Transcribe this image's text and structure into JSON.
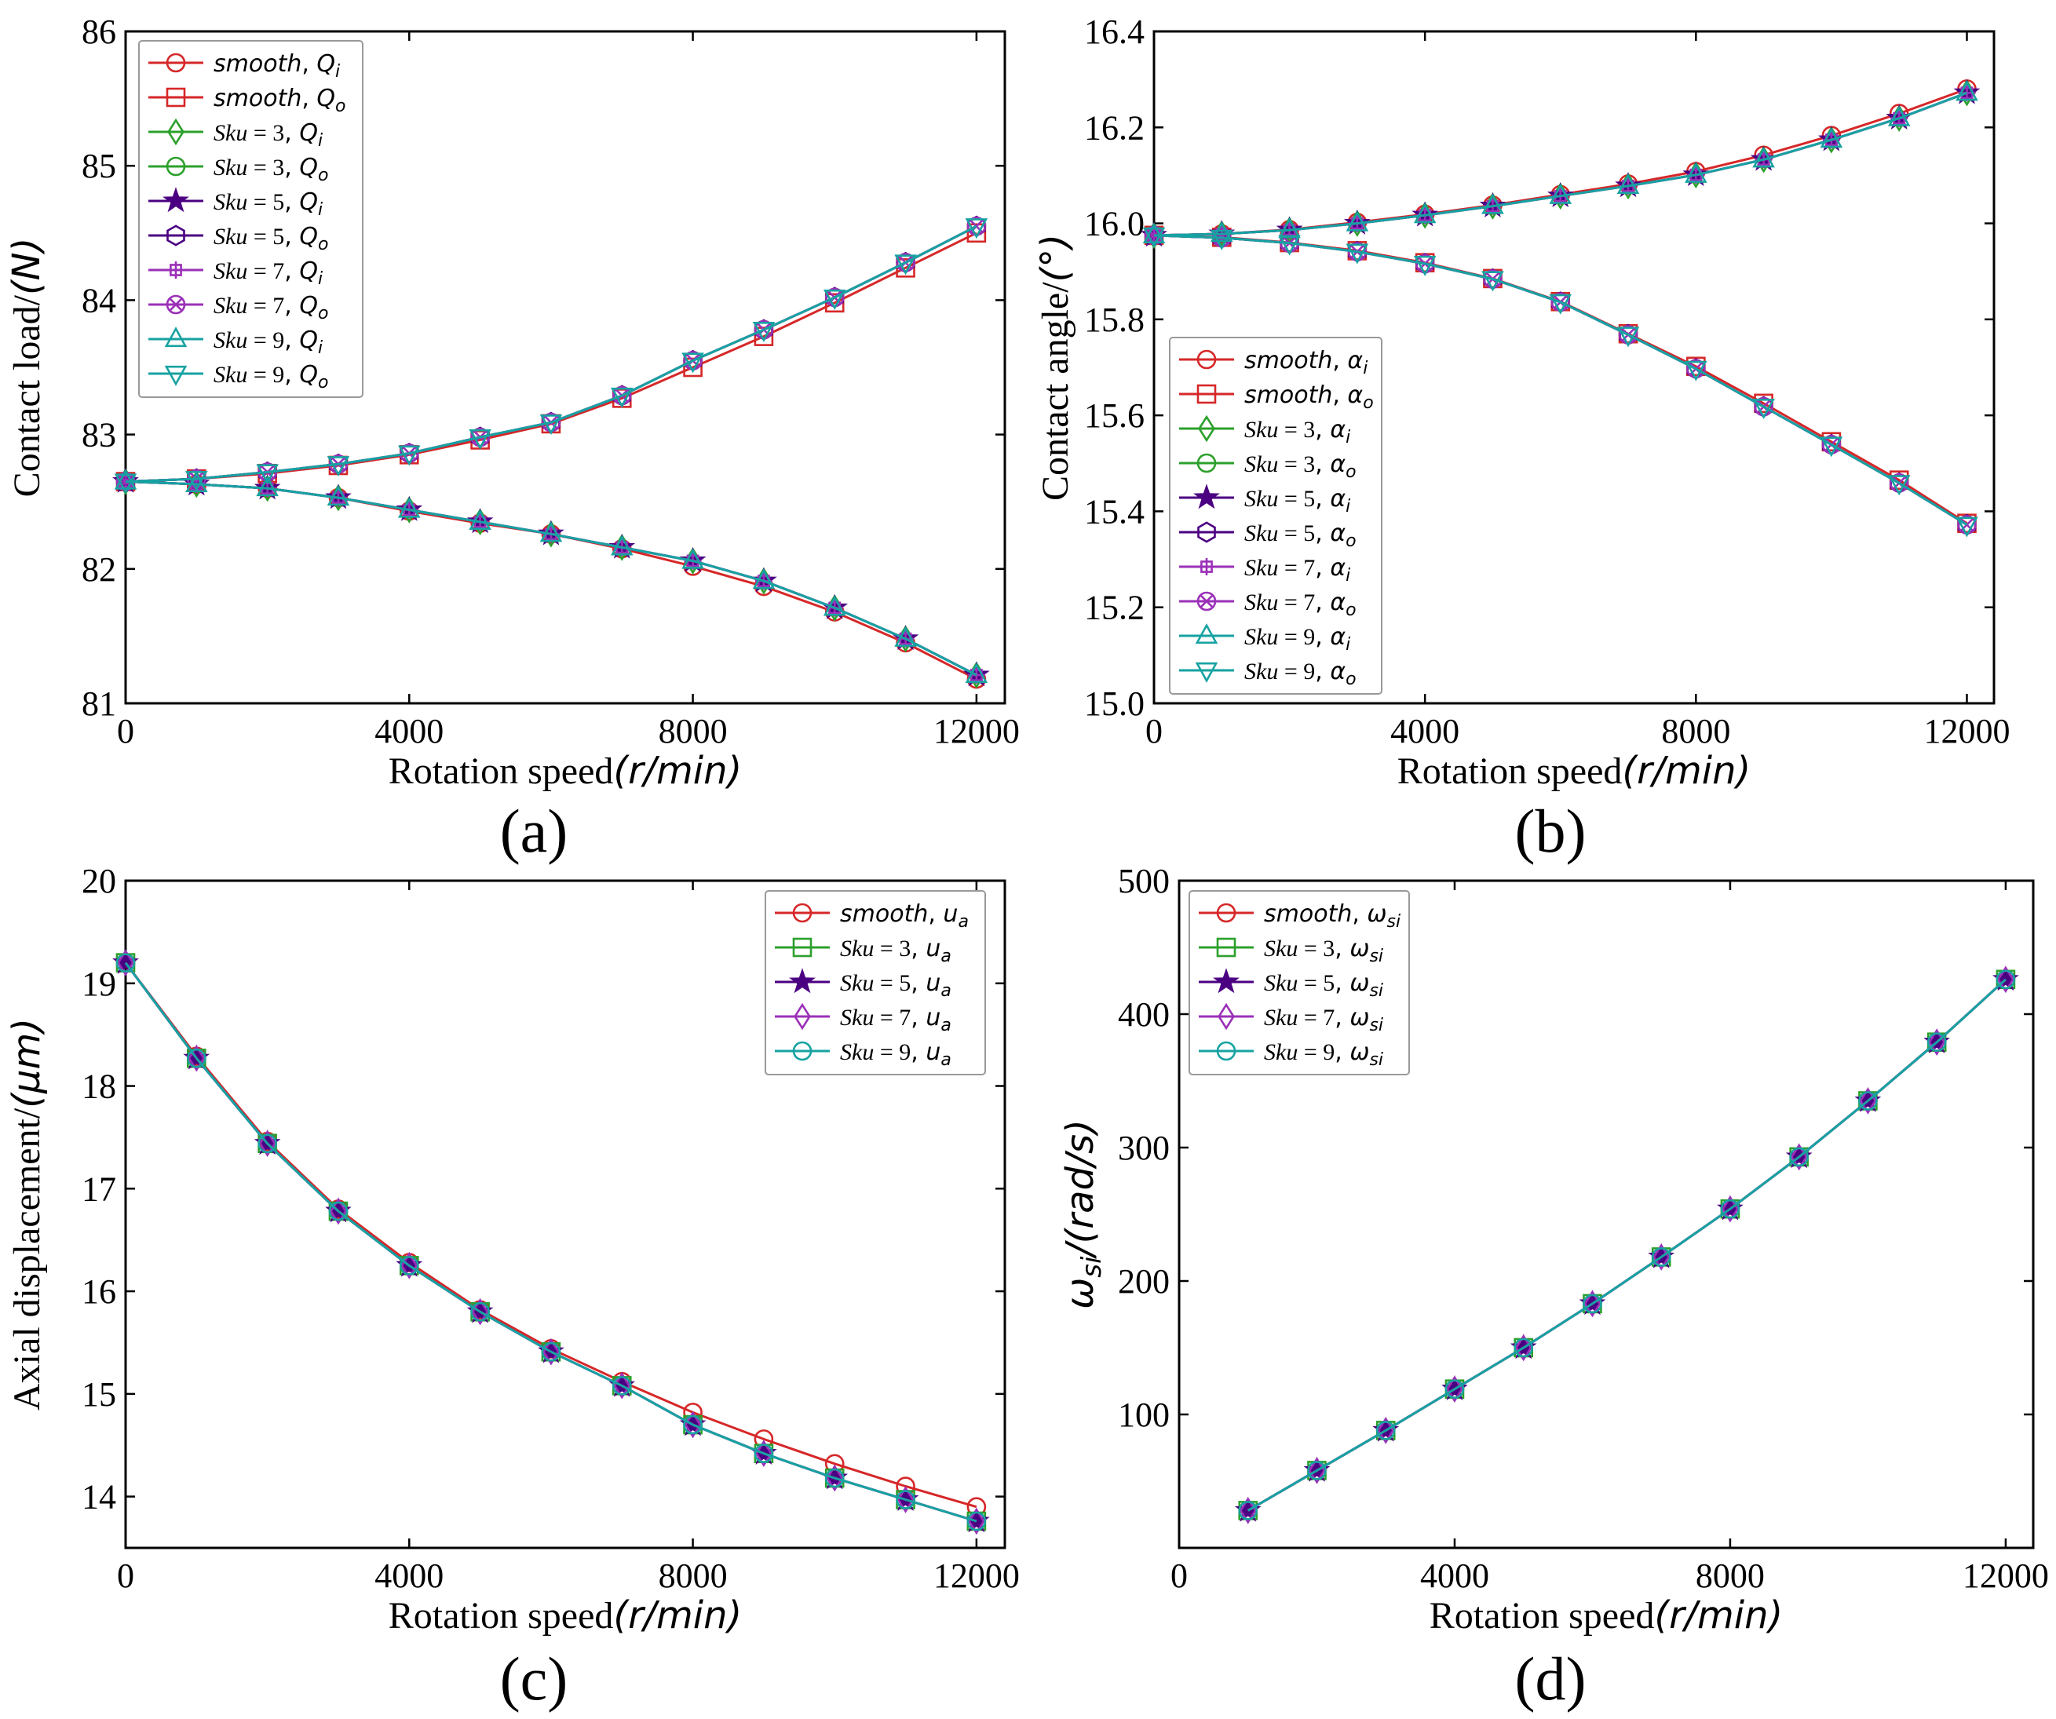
{
  "colors": {
    "smooth": "#d62728",
    "sku3": "#2ca02c",
    "sku5": "#4b0082",
    "sku7": "#9b30b8",
    "sku9": "#17a2a2"
  },
  "chart_data": [
    {
      "id": "a",
      "type": "line",
      "panel_label": "(a)",
      "title": "",
      "xlabel_main": "Rotation speed",
      "xlabel_unit": "(r/min)",
      "ylabel_main": "Contact load/",
      "ylabel_unit": "(N)",
      "xlim": [
        0,
        12400
      ],
      "ylim": [
        81,
        86
      ],
      "xticks": [
        0,
        4000,
        8000,
        12000
      ],
      "yticks": [
        81,
        82,
        83,
        84,
        85,
        86
      ],
      "legend": "upper-left",
      "x": [
        0,
        1000,
        2000,
        3000,
        4000,
        5000,
        6000,
        7000,
        8000,
        9000,
        10000,
        11000,
        12000
      ],
      "series": [
        {
          "name": "smooth, Q_i",
          "base": "smooth",
          "sub": "i",
          "color_key": "smooth",
          "marker": "circle",
          "values": [
            82.65,
            82.63,
            82.6,
            82.53,
            82.43,
            82.34,
            82.26,
            82.15,
            82.02,
            81.87,
            81.68,
            81.45,
            81.18
          ]
        },
        {
          "name": "smooth, Q_o",
          "base": "smooth",
          "sub": "o",
          "color_key": "smooth",
          "marker": "square",
          "values": [
            82.65,
            82.67,
            82.71,
            82.77,
            82.85,
            82.96,
            83.08,
            83.27,
            83.5,
            83.73,
            83.98,
            84.24,
            84.5
          ]
        },
        {
          "name": "Sku=3, Q_i",
          "base": "Sku = 3",
          "sub": "i",
          "color_key": "sku3",
          "marker": "diamond",
          "values": [
            82.65,
            82.63,
            82.6,
            82.53,
            82.44,
            82.35,
            82.26,
            82.16,
            82.06,
            81.91,
            81.71,
            81.48,
            81.21
          ]
        },
        {
          "name": "Sku=3, Q_o",
          "base": "Sku = 3",
          "sub": "o",
          "color_key": "sku3",
          "marker": "circle",
          "values": [
            82.65,
            82.67,
            82.72,
            82.78,
            82.86,
            82.98,
            83.09,
            83.29,
            83.55,
            83.78,
            84.02,
            84.28,
            84.55
          ]
        },
        {
          "name": "Sku=5, Q_i",
          "base": "Sku = 5",
          "sub": "i",
          "color_key": "sku5",
          "marker": "star",
          "values": [
            82.65,
            82.63,
            82.6,
            82.53,
            82.44,
            82.35,
            82.26,
            82.16,
            82.06,
            81.91,
            81.71,
            81.48,
            81.21
          ]
        },
        {
          "name": "Sku=5, Q_o",
          "base": "Sku = 5",
          "sub": "o",
          "color_key": "sku5",
          "marker": "hexagon",
          "values": [
            82.65,
            82.67,
            82.72,
            82.78,
            82.86,
            82.98,
            83.09,
            83.29,
            83.55,
            83.78,
            84.02,
            84.28,
            84.55
          ]
        },
        {
          "name": "Sku=7, Q_i",
          "base": "Sku = 7",
          "sub": "i",
          "color_key": "sku7",
          "marker": "plusbox",
          "values": [
            82.65,
            82.63,
            82.6,
            82.53,
            82.44,
            82.35,
            82.26,
            82.16,
            82.06,
            81.91,
            81.71,
            81.48,
            81.21
          ]
        },
        {
          "name": "Sku=7, Q_o",
          "base": "Sku = 7",
          "sub": "o",
          "color_key": "sku7",
          "marker": "xcircle",
          "values": [
            82.65,
            82.67,
            82.72,
            82.78,
            82.86,
            82.98,
            83.09,
            83.29,
            83.55,
            83.78,
            84.02,
            84.28,
            84.55
          ]
        },
        {
          "name": "Sku=9, Q_i",
          "base": "Sku = 9",
          "sub": "i",
          "color_key": "sku9",
          "marker": "triangle-up",
          "values": [
            82.65,
            82.63,
            82.6,
            82.53,
            82.44,
            82.35,
            82.26,
            82.16,
            82.06,
            81.91,
            81.71,
            81.48,
            81.21
          ]
        },
        {
          "name": "Sku=9, Q_o",
          "base": "Sku = 9",
          "sub": "o",
          "color_key": "sku9",
          "marker": "triangle-down",
          "values": [
            82.65,
            82.67,
            82.72,
            82.78,
            82.86,
            82.98,
            83.09,
            83.29,
            83.55,
            83.78,
            84.02,
            84.28,
            84.55
          ]
        }
      ]
    },
    {
      "id": "b",
      "type": "line",
      "panel_label": "(b)",
      "title": "",
      "xlabel_main": "Rotation speed",
      "xlabel_unit": "(r/min)",
      "ylabel_main": "Contact angle/",
      "ylabel_unit": "(°)",
      "xlim": [
        0,
        12400
      ],
      "ylim": [
        15.0,
        16.4
      ],
      "xticks": [
        0,
        4000,
        8000,
        12000
      ],
      "yticks": [
        15.0,
        15.2,
        15.4,
        15.6,
        15.8,
        16.0,
        16.2,
        16.4
      ],
      "legend": "lower-left",
      "x": [
        0,
        1000,
        2000,
        3000,
        4000,
        5000,
        6000,
        7000,
        8000,
        9000,
        10000,
        11000,
        12000
      ],
      "series": [
        {
          "name": "smooth, α_i",
          "base": "smooth",
          "sub": "i",
          "greek": true,
          "color_key": "smooth",
          "marker": "circle",
          "values": [
            15.975,
            15.978,
            15.987,
            16.002,
            16.019,
            16.038,
            16.06,
            16.082,
            16.108,
            16.142,
            16.183,
            16.229,
            16.28
          ]
        },
        {
          "name": "smooth, α_o",
          "base": "smooth",
          "sub": "o",
          "greek": true,
          "color_key": "smooth",
          "marker": "square",
          "values": [
            15.975,
            15.971,
            15.96,
            15.943,
            15.918,
            15.885,
            15.837,
            15.77,
            15.702,
            15.625,
            15.545,
            15.465,
            15.375
          ]
        },
        {
          "name": "Sku=3, α_i",
          "base": "Sku = 3",
          "sub": "i",
          "greek": true,
          "color_key": "sku3",
          "marker": "diamond",
          "values": [
            15.975,
            15.978,
            15.986,
            16.0,
            16.017,
            16.036,
            16.057,
            16.078,
            16.101,
            16.133,
            16.174,
            16.219,
            16.272
          ]
        },
        {
          "name": "Sku=3, α_o",
          "base": "Sku = 3",
          "sub": "o",
          "greek": true,
          "color_key": "sku3",
          "marker": "circle",
          "values": [
            15.975,
            15.97,
            15.959,
            15.941,
            15.916,
            15.884,
            15.836,
            15.768,
            15.697,
            15.618,
            15.539,
            15.459,
            15.372
          ]
        },
        {
          "name": "Sku=5, α_i",
          "base": "Sku = 5",
          "sub": "i",
          "greek": true,
          "color_key": "sku5",
          "marker": "star",
          "values": [
            15.975,
            15.978,
            15.986,
            16.0,
            16.017,
            16.036,
            16.057,
            16.078,
            16.101,
            16.133,
            16.174,
            16.219,
            16.272
          ]
        },
        {
          "name": "Sku=5, α_o",
          "base": "Sku = 5",
          "sub": "o",
          "greek": true,
          "color_key": "sku5",
          "marker": "hexagon",
          "values": [
            15.975,
            15.97,
            15.959,
            15.941,
            15.916,
            15.884,
            15.836,
            15.768,
            15.697,
            15.618,
            15.539,
            15.459,
            15.372
          ]
        },
        {
          "name": "Sku=7, α_i",
          "base": "Sku = 7",
          "sub": "i",
          "greek": true,
          "color_key": "sku7",
          "marker": "plusbox",
          "values": [
            15.975,
            15.978,
            15.986,
            16.0,
            16.017,
            16.036,
            16.057,
            16.078,
            16.101,
            16.133,
            16.174,
            16.219,
            16.272
          ]
        },
        {
          "name": "Sku=7, α_o",
          "base": "Sku = 7",
          "sub": "o",
          "greek": true,
          "color_key": "sku7",
          "marker": "xcircle",
          "values": [
            15.975,
            15.97,
            15.959,
            15.941,
            15.916,
            15.884,
            15.836,
            15.768,
            15.697,
            15.618,
            15.539,
            15.459,
            15.372
          ]
        },
        {
          "name": "Sku=9, α_i",
          "base": "Sku = 9",
          "sub": "i",
          "greek": true,
          "color_key": "sku9",
          "marker": "triangle-up",
          "values": [
            15.975,
            15.978,
            15.986,
            16.0,
            16.017,
            16.036,
            16.057,
            16.078,
            16.101,
            16.133,
            16.174,
            16.219,
            16.272
          ]
        },
        {
          "name": "Sku=9, α_o",
          "base": "Sku = 9",
          "sub": "o",
          "greek": true,
          "color_key": "sku9",
          "marker": "triangle-down",
          "values": [
            15.975,
            15.97,
            15.959,
            15.941,
            15.916,
            15.884,
            15.836,
            15.768,
            15.697,
            15.618,
            15.539,
            15.459,
            15.372
          ]
        }
      ]
    },
    {
      "id": "c",
      "type": "line",
      "panel_label": "(c)",
      "title": "",
      "xlabel_main": "Rotation speed",
      "xlabel_unit": "(r/min)",
      "ylabel_main": "Axial displacement/",
      "ylabel_unit": "(μm)",
      "xlim": [
        0,
        12400
      ],
      "ylim": [
        13.5,
        20
      ],
      "xticks": [
        0,
        4000,
        8000,
        12000
      ],
      "yticks": [
        14,
        15,
        16,
        17,
        18,
        19,
        20
      ],
      "legend": "upper-right",
      "x": [
        0,
        1000,
        2000,
        3000,
        4000,
        5000,
        6000,
        7000,
        8000,
        9000,
        10000,
        11000,
        12000
      ],
      "series": [
        {
          "name": "smooth, u_a",
          "base": "smooth",
          "sub": "u",
          "color_key": "smooth",
          "marker": "circle",
          "values": [
            19.2,
            18.29,
            17.46,
            16.8,
            16.28,
            15.82,
            15.44,
            15.12,
            14.82,
            14.56,
            14.32,
            14.1,
            13.9
          ]
        },
        {
          "name": "Sku=3, u_a",
          "base": "Sku = 3",
          "sub": "u",
          "color_key": "sku3",
          "marker": "square",
          "values": [
            19.2,
            18.27,
            17.44,
            16.78,
            16.25,
            15.8,
            15.41,
            15.08,
            14.7,
            14.42,
            14.18,
            13.97,
            13.76
          ]
        },
        {
          "name": "Sku=5, u_a",
          "base": "Sku = 5",
          "sub": "u",
          "color_key": "sku5",
          "marker": "star",
          "values": [
            19.2,
            18.27,
            17.44,
            16.78,
            16.25,
            15.8,
            15.41,
            15.08,
            14.7,
            14.42,
            14.18,
            13.97,
            13.76
          ]
        },
        {
          "name": "Sku=7, u_a",
          "base": "Sku = 7",
          "sub": "u",
          "color_key": "sku7",
          "marker": "diamond",
          "values": [
            19.2,
            18.27,
            17.44,
            16.78,
            16.25,
            15.8,
            15.41,
            15.08,
            14.7,
            14.42,
            14.18,
            13.97,
            13.76
          ]
        },
        {
          "name": "Sku=9, u_a",
          "base": "Sku = 9",
          "sub": "u",
          "color_key": "sku9",
          "marker": "circle",
          "values": [
            19.2,
            18.27,
            17.44,
            16.78,
            16.25,
            15.8,
            15.41,
            15.08,
            14.7,
            14.42,
            14.18,
            13.97,
            13.76
          ]
        }
      ]
    },
    {
      "id": "d",
      "type": "line",
      "panel_label": "(d)",
      "title": "",
      "xlabel_main": "Rotation speed",
      "xlabel_unit": "(r/min)",
      "ylabel_main": "ω_si/",
      "ylabel_unit": "(rad/s)",
      "xlim": [
        0,
        12400
      ],
      "ylim": [
        0,
        500
      ],
      "xticks": [
        0,
        4000,
        8000,
        12000
      ],
      "yticks": [
        100,
        200,
        300,
        400,
        500
      ],
      "legend": "upper-left",
      "x": [
        1000,
        2000,
        3000,
        4000,
        5000,
        6000,
        7000,
        8000,
        9000,
        10000,
        11000,
        12000
      ],
      "series": [
        {
          "name": "smooth, ω_si",
          "base": "smooth",
          "sub": "si",
          "color_key": "smooth",
          "marker": "circle",
          "values": [
            28,
            58,
            88,
            119,
            150,
            183,
            218,
            254,
            293,
            335,
            379,
            426
          ]
        },
        {
          "name": "Sku=3, ω_si",
          "base": "Sku = 3",
          "sub": "si",
          "color_key": "sku3",
          "marker": "square",
          "values": [
            28,
            58,
            88,
            119,
            150,
            183,
            218,
            254,
            293,
            335,
            379,
            426
          ]
        },
        {
          "name": "Sku=5, ω_si",
          "base": "Sku = 5",
          "sub": "si",
          "color_key": "sku5",
          "marker": "star",
          "values": [
            28,
            58,
            88,
            119,
            150,
            183,
            218,
            254,
            293,
            335,
            379,
            426
          ]
        },
        {
          "name": "Sku=7, ω_si",
          "base": "Sku = 7",
          "sub": "si",
          "color_key": "sku7",
          "marker": "diamond",
          "values": [
            28,
            58,
            88,
            119,
            150,
            183,
            218,
            254,
            293,
            335,
            379,
            426
          ]
        },
        {
          "name": "Sku=9, ω_si",
          "base": "Sku = 9",
          "sub": "si",
          "color_key": "sku9",
          "marker": "circle",
          "values": [
            28,
            58,
            88,
            119,
            150,
            183,
            218,
            254,
            293,
            335,
            379,
            426
          ]
        }
      ]
    }
  ]
}
